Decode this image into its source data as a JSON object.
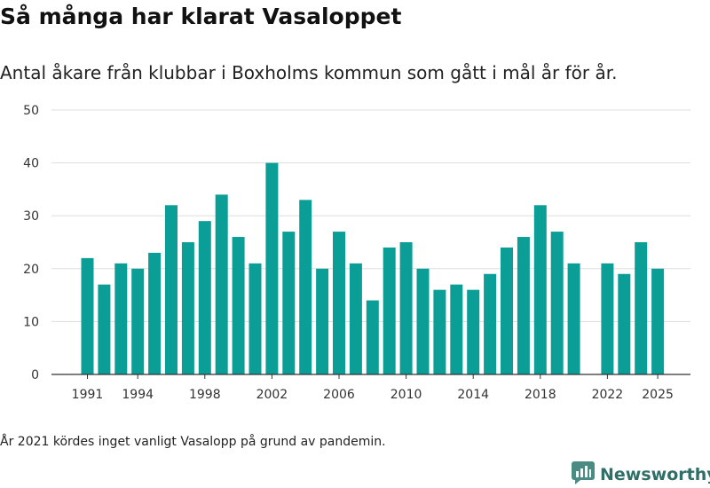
{
  "header": {
    "title": "Så många har klarat Vasaloppet",
    "subtitle": "Antal åkare från klubbar i Boxholms kommun som gått i mål år för år."
  },
  "footnote": "År 2021 kördes inget vanligt Vasalopp på grund av pandemin.",
  "brand": {
    "name": "Newsworthy",
    "color": "#2f6f68",
    "icon": "newsworthy-logo-icon"
  },
  "colors": {
    "bar": "#0b9e96",
    "grid": "#dddddd",
    "axis": "#333333"
  },
  "chart_data": {
    "type": "bar",
    "title": "",
    "xlabel": "",
    "ylabel": "",
    "ylim": [
      0,
      50
    ],
    "yticks": [
      0,
      10,
      20,
      30,
      40,
      50
    ],
    "grid": true,
    "xtick_labels": [
      "1991",
      "1994",
      "1998",
      "2002",
      "2006",
      "2010",
      "2014",
      "2018",
      "2022",
      "2025"
    ],
    "categories": [
      1991,
      1992,
      1993,
      1994,
      1995,
      1996,
      1997,
      1998,
      1999,
      2000,
      2001,
      2002,
      2003,
      2004,
      2005,
      2006,
      2007,
      2008,
      2009,
      2010,
      2011,
      2012,
      2013,
      2014,
      2015,
      2016,
      2017,
      2018,
      2019,
      2020,
      2021,
      2022,
      2023,
      2024,
      2025
    ],
    "values": [
      22,
      17,
      21,
      20,
      23,
      32,
      25,
      29,
      34,
      26,
      21,
      40,
      27,
      33,
      20,
      27,
      21,
      14,
      24,
      25,
      20,
      16,
      17,
      16,
      19,
      24,
      26,
      32,
      27,
      21,
      null,
      21,
      19,
      25,
      20
    ]
  }
}
